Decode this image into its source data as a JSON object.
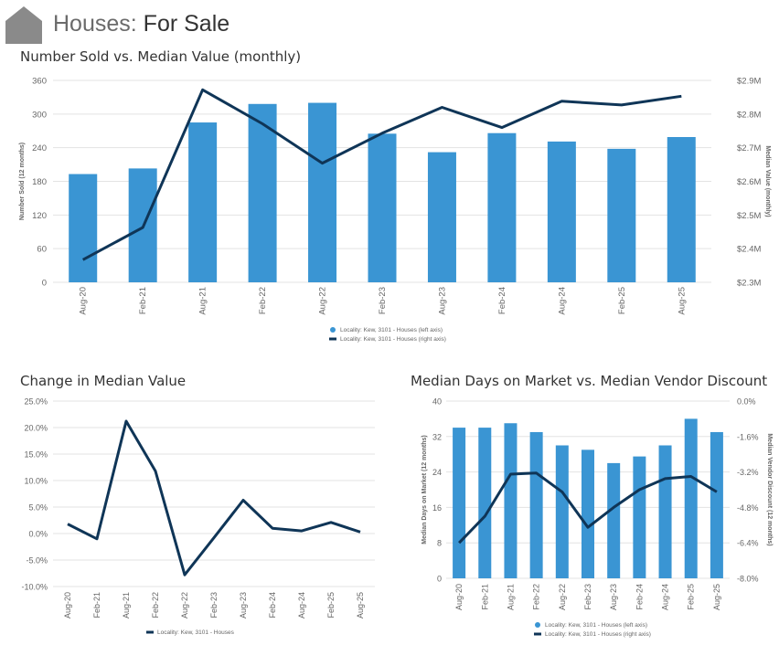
{
  "header": {
    "title_main": "Houses: ",
    "title_sub": "For Sale",
    "icon": "home-icon"
  },
  "colors": {
    "bar": "#3a95d3",
    "line": "#0f3557",
    "grid": "#e3e3e3",
    "axis_text": "#666666"
  },
  "chart_data": [
    {
      "id": "chart1",
      "type": "bar+line",
      "title": "Number Sold vs. Median Value (monthly)",
      "categories": [
        "Aug-20",
        "Feb-21",
        "Aug-21",
        "Feb-22",
        "Aug-22",
        "Feb-23",
        "Aug-23",
        "Feb-24",
        "Aug-24",
        "Feb-25",
        "Aug-25"
      ],
      "series": [
        {
          "name": "Locality: Kew, 3101 - Houses (left axis)",
          "type": "bar",
          "axis": "left",
          "values": [
            193,
            203,
            285,
            318,
            320,
            265,
            232,
            266,
            251,
            238,
            259
          ]
        },
        {
          "name": "Locality: Kew, 3101 - Houses (right axis)",
          "type": "line",
          "axis": "right",
          "values": [
            2.367,
            2.463,
            2.872,
            2.771,
            2.654,
            2.743,
            2.82,
            2.76,
            2.838,
            2.827,
            2.853
          ]
        }
      ],
      "left_axis": {
        "label": "Number Sold (12 months)",
        "ylim": [
          0,
          360
        ],
        "ticks": [
          0,
          60,
          120,
          180,
          240,
          300,
          360
        ],
        "tick_labels": [
          "0",
          "60",
          "120",
          "180",
          "240",
          "300",
          "360"
        ]
      },
      "right_axis": {
        "label": "Median Value (monthly)",
        "ylim": [
          2.3,
          2.9
        ],
        "ticks": [
          2.3,
          2.4,
          2.5,
          2.6,
          2.7,
          2.8,
          2.9
        ],
        "tick_labels": [
          "$2.3M",
          "$2.4M",
          "$2.5M",
          "$2.6M",
          "$2.7M",
          "$2.8M",
          "$2.9M"
        ]
      },
      "legend": [
        "Locality: Kew, 3101 - Houses (left axis)",
        "Locality: Kew, 3101 - Houses (right axis)"
      ]
    },
    {
      "id": "chart2",
      "type": "line",
      "title": "Change in Median Value",
      "categories": [
        "Aug-20",
        "Feb-21",
        "Aug-21",
        "Feb-22",
        "Aug-22",
        "Feb-23",
        "Aug-23",
        "Feb-24",
        "Aug-24",
        "Feb-25",
        "Aug-25"
      ],
      "series": [
        {
          "name": "Locality: Kew, 3101 - Houses",
          "type": "line",
          "values": [
            1.8,
            -1.0,
            21.2,
            11.8,
            -7.8,
            -0.8,
            6.3,
            1.0,
            0.5,
            2.1,
            0.3
          ]
        }
      ],
      "left_axis": {
        "label": "",
        "ylim": [
          -10,
          25
        ],
        "ticks": [
          -10,
          -5,
          0,
          5,
          10,
          15,
          20,
          25
        ],
        "tick_labels": [
          "-10.0%",
          "-5.0%",
          "0.0%",
          "5.0%",
          "10.0%",
          "15.0%",
          "20.0%",
          "25.0%"
        ]
      },
      "legend": [
        "Locality: Kew, 3101 - Houses"
      ]
    },
    {
      "id": "chart3",
      "type": "bar+line",
      "title": "Median Days on Market vs. Median Vendor Discount",
      "categories": [
        "Aug-20",
        "Feb-21",
        "Aug-21",
        "Feb-22",
        "Aug-22",
        "Feb-23",
        "Aug-23",
        "Feb-24",
        "Aug-24",
        "Feb-25",
        "Aug-25"
      ],
      "series": [
        {
          "name": "Locality: Kew, 3101 - Houses (left axis)",
          "type": "bar",
          "axis": "left",
          "values": [
            34,
            34,
            35,
            33,
            30,
            29,
            26,
            27.5,
            30,
            36,
            33
          ]
        },
        {
          "name": "Locality: Kew, 3101 - Houses (right axis)",
          "type": "line",
          "axis": "right",
          "values": [
            -6.4,
            -5.2,
            -3.3,
            -3.25,
            -4.1,
            -5.7,
            -4.8,
            -4.0,
            -3.5,
            -3.4,
            -4.1
          ]
        }
      ],
      "left_axis": {
        "label": "Median Days on Market (12 months)",
        "ylim": [
          0,
          40
        ],
        "ticks": [
          0,
          8,
          16,
          24,
          32,
          40
        ],
        "tick_labels": [
          "0",
          "8",
          "16",
          "24",
          "32",
          "40"
        ]
      },
      "right_axis": {
        "label": "Median Vendor Discount (12 months)",
        "ylim": [
          -8,
          0
        ],
        "ticks": [
          -8,
          -6.4,
          -4.8,
          -3.2,
          -1.6,
          0
        ],
        "tick_labels": [
          "-8.0%",
          "-6.4%",
          "-4.8%",
          "-3.2%",
          "-1.6%",
          "0.0%"
        ]
      },
      "legend": [
        "Locality: Kew, 3101 - Houses (left axis)",
        "Locality: Kew, 3101 - Houses (right axis)"
      ]
    }
  ]
}
